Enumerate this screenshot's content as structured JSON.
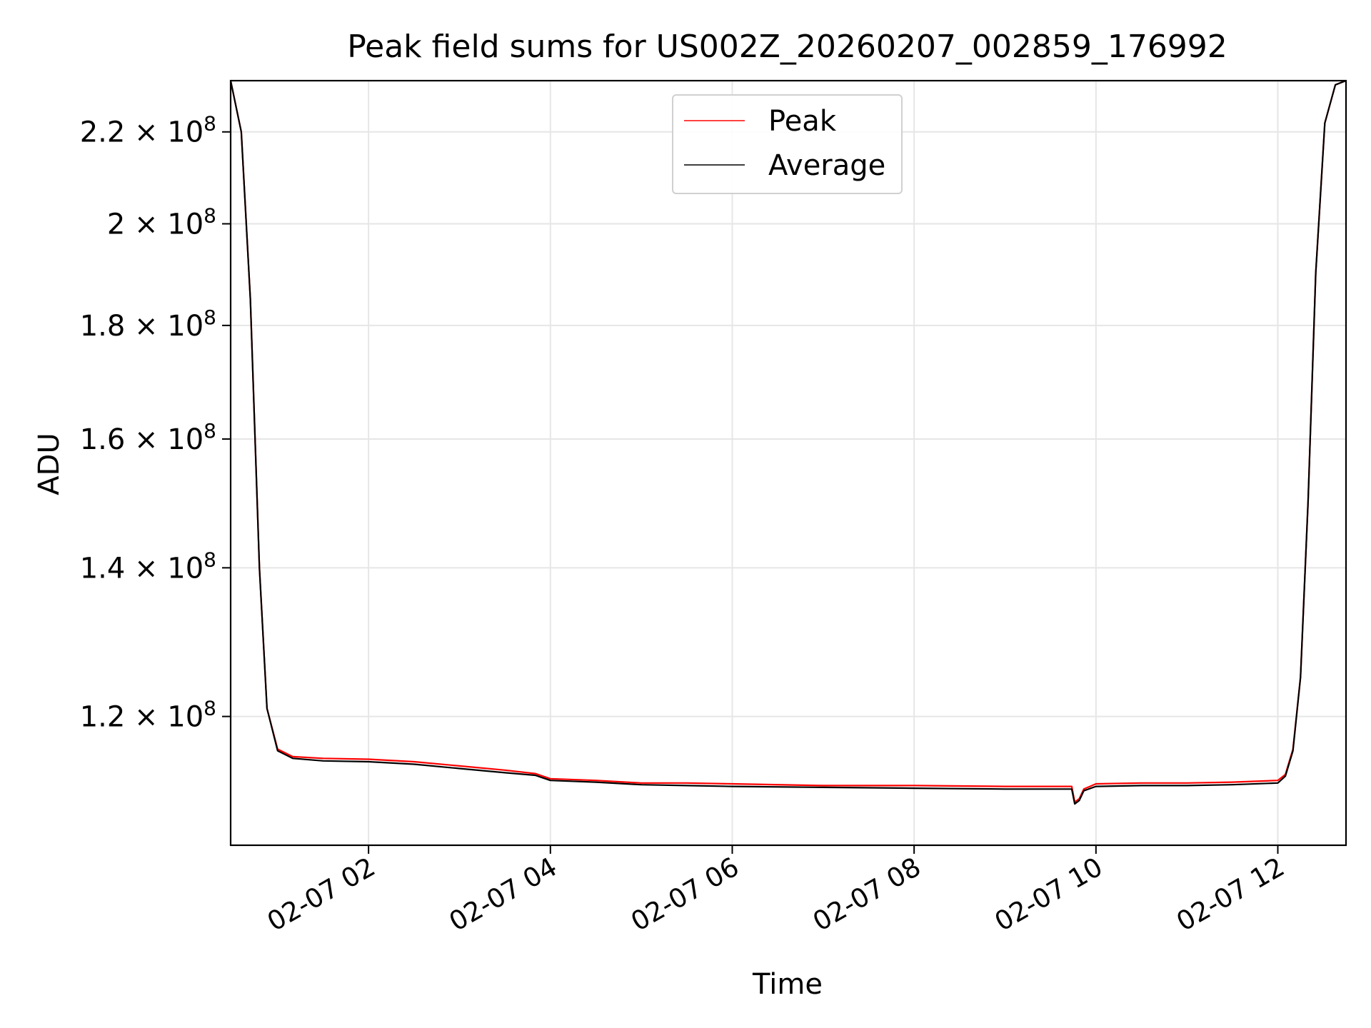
{
  "chart_data": {
    "type": "line",
    "title": "Peak field sums for US002Z_20260207_002859_176992",
    "xlabel": "Time",
    "ylabel": "ADU",
    "y_scale": "log",
    "ylim": [
      105000000,
      232000000
    ],
    "x_tick_labels": [
      "02-07 02",
      "02-07 04",
      "02-07 06",
      "02-07 08",
      "02-07 10",
      "02-07 12"
    ],
    "x_ticks": [
      "2026-02-07 02:00",
      "2026-02-07 04:00",
      "2026-02-07 06:00",
      "2026-02-07 08:00",
      "2026-02-07 10:00",
      "2026-02-07 12:00"
    ],
    "x_range": [
      "2026-02-07 00:29",
      "2026-02-07 12:45"
    ],
    "y_ticks": [
      {
        "value": 120000000,
        "mantissa": "1.2",
        "base": "10",
        "exp": "8"
      },
      {
        "value": 140000000,
        "mantissa": "1.4",
        "base": "10",
        "exp": "8"
      },
      {
        "value": 160000000,
        "mantissa": "1.6",
        "base": "10",
        "exp": "8"
      },
      {
        "value": 180000000,
        "mantissa": "1.8",
        "base": "10",
        "exp": "8"
      },
      {
        "value": 200000000,
        "mantissa": "2",
        "base": "10",
        "exp": "8"
      },
      {
        "value": 220000000,
        "mantissa": "2.2",
        "base": "10",
        "exp": "8"
      }
    ],
    "grid": true,
    "legend_position": "top-center",
    "series": [
      {
        "name": "Peak",
        "color": "#ff0000",
        "points": [
          {
            "x": "2026-02-07 00:29",
            "y": 232000000
          },
          {
            "x": "2026-02-07 00:36",
            "y": 220000000
          },
          {
            "x": "2026-02-07 00:42",
            "y": 185000000
          },
          {
            "x": "2026-02-07 00:48",
            "y": 140000000
          },
          {
            "x": "2026-02-07 00:53",
            "y": 121000000
          },
          {
            "x": "2026-02-07 01:00",
            "y": 116000000
          },
          {
            "x": "2026-02-07 01:10",
            "y": 115100000
          },
          {
            "x": "2026-02-07 01:30",
            "y": 114900000
          },
          {
            "x": "2026-02-07 02:00",
            "y": 114800000
          },
          {
            "x": "2026-02-07 02:30",
            "y": 114500000
          },
          {
            "x": "2026-02-07 03:00",
            "y": 114000000
          },
          {
            "x": "2026-02-07 03:30",
            "y": 113500000
          },
          {
            "x": "2026-02-07 03:50",
            "y": 113100000
          },
          {
            "x": "2026-02-07 04:00",
            "y": 112500000
          },
          {
            "x": "2026-02-07 04:30",
            "y": 112300000
          },
          {
            "x": "2026-02-07 05:00",
            "y": 112000000
          },
          {
            "x": "2026-02-07 05:30",
            "y": 112000000
          },
          {
            "x": "2026-02-07 06:00",
            "y": 111900000
          },
          {
            "x": "2026-02-07 07:00",
            "y": 111700000
          },
          {
            "x": "2026-02-07 08:00",
            "y": 111700000
          },
          {
            "x": "2026-02-07 09:00",
            "y": 111600000
          },
          {
            "x": "2026-02-07 09:44",
            "y": 111600000
          },
          {
            "x": "2026-02-07 09:46",
            "y": 109800000
          },
          {
            "x": "2026-02-07 09:49",
            "y": 110200000
          },
          {
            "x": "2026-02-07 09:52",
            "y": 111300000
          },
          {
            "x": "2026-02-07 10:00",
            "y": 111900000
          },
          {
            "x": "2026-02-07 10:30",
            "y": 112000000
          },
          {
            "x": "2026-02-07 11:00",
            "y": 112000000
          },
          {
            "x": "2026-02-07 11:30",
            "y": 112100000
          },
          {
            "x": "2026-02-07 12:00",
            "y": 112300000
          },
          {
            "x": "2026-02-07 12:05",
            "y": 113000000
          },
          {
            "x": "2026-02-07 12:10",
            "y": 116000000
          },
          {
            "x": "2026-02-07 12:15",
            "y": 125000000
          },
          {
            "x": "2026-02-07 12:20",
            "y": 150000000
          },
          {
            "x": "2026-02-07 12:25",
            "y": 190000000
          },
          {
            "x": "2026-02-07 12:31",
            "y": 222000000
          },
          {
            "x": "2026-02-07 12:38",
            "y": 231000000
          },
          {
            "x": "2026-02-07 12:45",
            "y": 232000000
          }
        ]
      },
      {
        "name": "Average",
        "color": "#000000",
        "points": [
          {
            "x": "2026-02-07 00:29",
            "y": 232000000
          },
          {
            "x": "2026-02-07 00:36",
            "y": 220000000
          },
          {
            "x": "2026-02-07 00:42",
            "y": 185000000
          },
          {
            "x": "2026-02-07 00:48",
            "y": 140000000
          },
          {
            "x": "2026-02-07 00:53",
            "y": 121000000
          },
          {
            "x": "2026-02-07 01:00",
            "y": 115800000
          },
          {
            "x": "2026-02-07 01:10",
            "y": 114900000
          },
          {
            "x": "2026-02-07 01:30",
            "y": 114600000
          },
          {
            "x": "2026-02-07 02:00",
            "y": 114500000
          },
          {
            "x": "2026-02-07 02:30",
            "y": 114200000
          },
          {
            "x": "2026-02-07 03:00",
            "y": 113700000
          },
          {
            "x": "2026-02-07 03:30",
            "y": 113200000
          },
          {
            "x": "2026-02-07 03:50",
            "y": 112900000
          },
          {
            "x": "2026-02-07 04:00",
            "y": 112300000
          },
          {
            "x": "2026-02-07 04:30",
            "y": 112100000
          },
          {
            "x": "2026-02-07 05:00",
            "y": 111800000
          },
          {
            "x": "2026-02-07 05:30",
            "y": 111700000
          },
          {
            "x": "2026-02-07 06:00",
            "y": 111600000
          },
          {
            "x": "2026-02-07 07:00",
            "y": 111500000
          },
          {
            "x": "2026-02-07 08:00",
            "y": 111400000
          },
          {
            "x": "2026-02-07 09:00",
            "y": 111300000
          },
          {
            "x": "2026-02-07 09:44",
            "y": 111300000
          },
          {
            "x": "2026-02-07 09:46",
            "y": 109600000
          },
          {
            "x": "2026-02-07 09:49",
            "y": 110000000
          },
          {
            "x": "2026-02-07 09:52",
            "y": 111100000
          },
          {
            "x": "2026-02-07 10:00",
            "y": 111600000
          },
          {
            "x": "2026-02-07 10:30",
            "y": 111700000
          },
          {
            "x": "2026-02-07 11:00",
            "y": 111700000
          },
          {
            "x": "2026-02-07 11:30",
            "y": 111800000
          },
          {
            "x": "2026-02-07 12:00",
            "y": 112000000
          },
          {
            "x": "2026-02-07 12:05",
            "y": 112800000
          },
          {
            "x": "2026-02-07 12:10",
            "y": 115800000
          },
          {
            "x": "2026-02-07 12:15",
            "y": 125000000
          },
          {
            "x": "2026-02-07 12:20",
            "y": 150000000
          },
          {
            "x": "2026-02-07 12:25",
            "y": 190000000
          },
          {
            "x": "2026-02-07 12:31",
            "y": 222000000
          },
          {
            "x": "2026-02-07 12:38",
            "y": 231000000
          },
          {
            "x": "2026-02-07 12:45",
            "y": 232000000
          }
        ]
      }
    ]
  }
}
